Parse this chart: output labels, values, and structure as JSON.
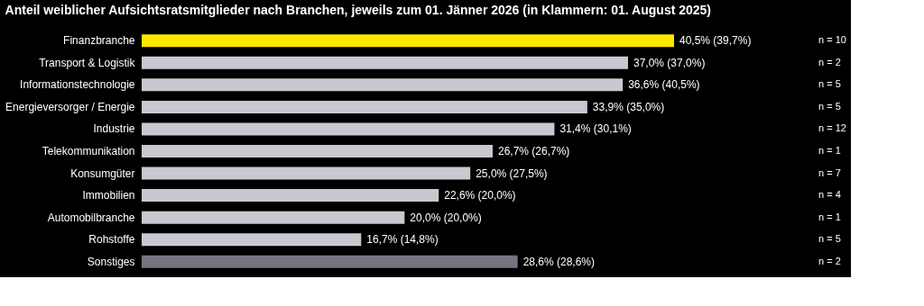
{
  "chart_data": {
    "type": "bar",
    "orientation": "horizontal",
    "title": "Anteil weiblicher Aufsichtsratsmitglieder nach Branchen, jeweils zum 01. Jänner 2026 (in Klammern: 01. August 2025)",
    "categories": [
      "Finanzbranche",
      "Transport & Logistik",
      "Informationstechnologie",
      "Energieversorger / Energie",
      "Industrie",
      "Telekommunikation",
      "Konsumgüter",
      "Immobilien",
      "Automobilbranche",
      "Rohstoffe",
      "Sonstiges"
    ],
    "values": [
      40.5,
      37.0,
      36.6,
      33.9,
      31.4,
      26.7,
      25.0,
      22.6,
      20.0,
      16.7,
      28.6
    ],
    "colors": [
      "#ffe600",
      "#c8c8d0",
      "#c8c8d0",
      "#c8c8d0",
      "#c8c8d0",
      "#c8c8d0",
      "#c8c8d0",
      "#c8c8d0",
      "#c8c8d0",
      "#c8c8d0",
      "#75757f"
    ],
    "value_labels": [
      "40,5% (39,7%)",
      "37,0% (37,0%)",
      "36,6% (40,5%)",
      "33,9% (35,0%)",
      "31,4% (30,1%)",
      "26,7% (26,7%)",
      "25,0% (27,5%)",
      "22,6% (20,0%)",
      "20,0% (20,0%)",
      "16,7% (14,8%)",
      "28,6% (28,6%)"
    ],
    "annotations": [
      "n = 10",
      "n = 2",
      "n = 5",
      "n = 5",
      "n = 12",
      "n = 1",
      "n = 7",
      "n = 4",
      "n = 1",
      "n = 5",
      "n = 2"
    ]
  }
}
